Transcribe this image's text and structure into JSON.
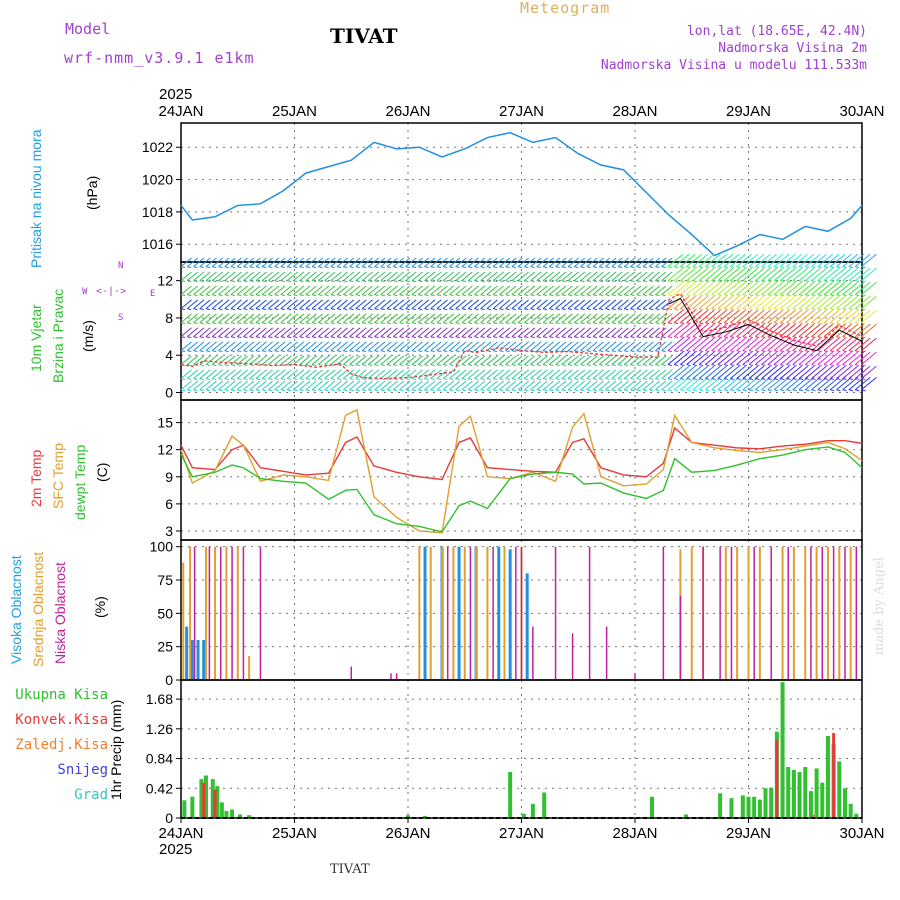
{
  "header": {
    "model_label": "Model",
    "model_name": "wrf-nmm_v3.9.1 e1km",
    "station": "TIVAT",
    "meteogram": "Meteogram",
    "lonlat": "lon,lat (18.65E, 42.4N)",
    "elev": "Nadmorska Visina 2m",
    "elev_model": "Nadmorska Visina u modelu 111.533m"
  },
  "footer": {
    "station": "TIVAT",
    "watermark": "made by Angel"
  },
  "time_axis": {
    "year": "2025",
    "labels": [
      "24JAN",
      "25JAN",
      "26JAN",
      "27JAN",
      "28JAN",
      "29JAN",
      "30JAN"
    ]
  },
  "panel_labels": {
    "pressure": [
      "Pritisak na nivou mora",
      "(hPa)"
    ],
    "wind": [
      "10m Vjetar",
      "Brzina i Pravac",
      "(m/s)"
    ],
    "temp": [
      "2m Temp",
      "SFC Temp",
      "dewpt Temp",
      "(C)"
    ],
    "cloud": [
      "Visoka Oblacnost",
      "Srednja Oblacnost",
      "Niska Oblacnost",
      "(%)"
    ],
    "precip_axis": "1hr Precip (mm)",
    "precip_legend": [
      "Ukupna Kisa",
      "Konvek.Kisa",
      "Zaledj.Kisa",
      "Snijeg",
      "Grad"
    ]
  },
  "compass": {
    "n": "N",
    "s": "S",
    "w": "W",
    "e": "E"
  },
  "colors": {
    "pressure": "#2090e0",
    "t2m": "#e83a3a",
    "tsfc": "#e0a030",
    "dewpt": "#30c030",
    "cloud_high": "#2090e0",
    "cloud_mid": "#e0a030",
    "cloud_low": "#c020a0",
    "rain": "#30c030",
    "conv": "#e83a3a",
    "frz": "#f08030",
    "snow": "#4040e0",
    "hail": "#30c8c0"
  },
  "chart_data": [
    {
      "type": "line",
      "name": "pressure",
      "title": "",
      "ylabel": "(hPa)",
      "ylim": [
        1014.9,
        1023.5
      ],
      "ticks": [
        1016,
        1018,
        1020,
        1022
      ],
      "x_days": [
        0,
        0.1,
        0.3,
        0.5,
        0.7,
        0.9,
        1.1,
        1.3,
        1.5,
        1.7,
        1.9,
        2.1,
        2.3,
        2.5,
        2.7,
        2.9,
        3.1,
        3.3,
        3.5,
        3.7,
        3.9,
        4.1,
        4.3,
        4.5,
        4.7,
        4.9,
        5.1,
        5.3,
        5.5,
        5.7,
        5.9
      ],
      "series": [
        {
          "values": [
            1018.4,
            1017.5,
            1017.7,
            1018.4,
            1018.5,
            1019.3,
            1020.4,
            1020.8,
            1021.2,
            1022.3,
            1021.9,
            1022.0,
            1021.4,
            1021.9,
            1022.6,
            1022.9,
            1022.3,
            1022.6,
            1021.6,
            1020.9,
            1020.6,
            1019.2,
            1017.8,
            1016.6,
            1015.3,
            1015.9,
            1016.6,
            1016.3,
            1017.1,
            1016.8,
            1017.6
          ]
        }
      ],
      "x_end": [
        6.0,
        1018.4
      ]
    },
    {
      "type": "line",
      "name": "wind_speed",
      "ylabel": "(m/s)",
      "ylim": [
        -0.8,
        14
      ],
      "ticks": [
        0,
        4,
        8,
        12
      ],
      "x_days": [
        0,
        0.1,
        0.2,
        0.4,
        0.6,
        0.8,
        1.0,
        1.2,
        1.4,
        1.5,
        1.6,
        1.8,
        2.0,
        2.2,
        2.4,
        2.5,
        2.6,
        2.8,
        3.0,
        3.2,
        3.4,
        3.6,
        3.8,
        4.0,
        4.2,
        4.3,
        4.4,
        4.6,
        4.8,
        5.0,
        5.2,
        5.4,
        5.6,
        5.8,
        6.0
      ],
      "series": [
        {
          "values": [
            3.0,
            2.8,
            3.4,
            3.2,
            3.1,
            2.9,
            3.0,
            2.7,
            3.1,
            2.0,
            1.6,
            1.5,
            1.6,
            1.9,
            2.2,
            4.5,
            4.3,
            4.8,
            4.5,
            4.3,
            4.4,
            4.2,
            4.0,
            3.8,
            3.8,
            10.0,
            10.6,
            6.5,
            7.0,
            7.8,
            6.6,
            5.6,
            5.0,
            7.2,
            6.0
          ]
        }
      ],
      "barb_rows": [
        0.3,
        1.5,
        3.0,
        4.5,
        6.0,
        7.5,
        9.0,
        10.5,
        12.0,
        13.5
      ]
    },
    {
      "type": "line",
      "name": "temperature",
      "ylabel": "(C)",
      "ylim": [
        2.0,
        17.5
      ],
      "ticks": [
        3,
        6,
        9,
        12,
        15
      ],
      "x_days": [
        0,
        0.1,
        0.3,
        0.45,
        0.55,
        0.7,
        0.9,
        1.1,
        1.3,
        1.45,
        1.55,
        1.7,
        1.9,
        2.1,
        2.3,
        2.45,
        2.55,
        2.7,
        2.9,
        3.1,
        3.3,
        3.45,
        3.55,
        3.7,
        3.9,
        4.1,
        4.25,
        4.35,
        4.5,
        4.7,
        4.9,
        5.1,
        5.3,
        5.5,
        5.7,
        5.85,
        6.0
      ],
      "series": [
        {
          "name": "2m Temp",
          "values": [
            12.5,
            10.0,
            9.8,
            12.0,
            12.5,
            10.0,
            9.6,
            9.2,
            9.4,
            12.8,
            13.4,
            10.2,
            9.5,
            9.0,
            8.7,
            12.8,
            13.3,
            10.0,
            9.8,
            9.6,
            9.5,
            12.8,
            13.2,
            10.0,
            9.2,
            9.0,
            10.5,
            14.4,
            12.8,
            12.5,
            12.2,
            12.1,
            12.4,
            12.6,
            13.0,
            13.0,
            12.7
          ]
        },
        {
          "name": "SFC Temp",
          "values": [
            12.0,
            8.3,
            9.7,
            13.5,
            12.5,
            8.5,
            9.2,
            9.0,
            8.6,
            15.8,
            16.4,
            6.8,
            4.5,
            3.0,
            2.8,
            14.6,
            15.7,
            9.0,
            8.8,
            9.5,
            8.5,
            14.5,
            16.0,
            9.0,
            8.0,
            8.2,
            9.8,
            15.8,
            12.8,
            12.2,
            11.9,
            11.7,
            12.0,
            12.4,
            12.8,
            12.1,
            10.8
          ]
        },
        {
          "name": "dewpt Temp",
          "values": [
            11.5,
            9.0,
            9.5,
            10.3,
            10.0,
            8.8,
            8.5,
            8.3,
            6.5,
            7.5,
            7.6,
            4.8,
            3.8,
            3.5,
            2.9,
            5.8,
            6.3,
            5.5,
            8.8,
            9.3,
            9.5,
            9.3,
            8.2,
            8.3,
            7.2,
            6.6,
            7.5,
            11.0,
            9.5,
            9.7,
            10.3,
            11.0,
            11.4,
            12.0,
            12.3,
            11.7,
            10.0
          ]
        }
      ]
    },
    {
      "type": "bar",
      "name": "cloud_cover",
      "ylabel": "(%)",
      "ylim": [
        0,
        105
      ],
      "ticks": [
        0,
        25,
        50,
        75,
        100
      ],
      "series": [
        {
          "name": "Visoka Oblacnost",
          "x_days": [
            0.05,
            0.1,
            0.15,
            0.2,
            2.15,
            2.3,
            2.45,
            2.6,
            2.8,
            2.9,
            3.05
          ],
          "values": [
            40,
            30,
            30,
            30,
            100,
            100,
            100,
            100,
            100,
            98,
            80
          ]
        },
        {
          "name": "Srednja Oblacnost",
          "x_days": [
            0.02,
            0.08,
            0.22,
            0.3,
            0.4,
            0.5,
            0.6,
            2.1,
            2.2,
            2.3,
            2.4,
            2.5,
            2.6,
            2.7,
            2.85,
            3.0,
            4.4,
            4.5,
            4.6,
            4.8,
            4.9,
            5.0,
            5.1,
            5.3,
            5.4,
            5.5,
            5.6,
            5.7,
            5.8,
            5.9
          ],
          "values": [
            88,
            100,
            100,
            100,
            100,
            100,
            18,
            100,
            100,
            100,
            100,
            100,
            100,
            100,
            100,
            100,
            98,
            100,
            100,
            100,
            100,
            100,
            100,
            100,
            100,
            100,
            100,
            100,
            100,
            100
          ]
        },
        {
          "name": "Niska Oblacnost",
          "x_days": [
            0.12,
            0.25,
            0.35,
            0.45,
            0.55,
            0.7,
            1.5,
            1.85,
            1.9,
            2.35,
            2.55,
            2.75,
            2.95,
            3.0,
            3.1,
            3.3,
            3.45,
            3.6,
            3.75,
            4.0,
            4.25,
            4.4,
            4.6,
            4.75,
            4.85,
            5.05,
            5.2,
            5.35,
            5.55,
            5.65,
            5.75,
            5.85,
            5.95
          ],
          "values": [
            100,
            100,
            100,
            100,
            100,
            100,
            10,
            5,
            5,
            100,
            100,
            100,
            100,
            100,
            40,
            100,
            35,
            100,
            40,
            5,
            100,
            63,
            100,
            100,
            100,
            100,
            100,
            100,
            100,
            100,
            100,
            100,
            100
          ]
        }
      ]
    },
    {
      "type": "bar",
      "name": "precipitation",
      "ylabel": "1hr Precip (mm)",
      "ylim": [
        0,
        1.95
      ],
      "ticks": [
        0,
        0.42,
        0.84,
        1.26,
        1.68
      ],
      "series": [
        {
          "name": "Ukupna Kisa",
          "x_days": [
            0.03,
            0.1,
            0.18,
            0.22,
            0.28,
            0.32,
            0.36,
            0.4,
            0.45,
            0.52,
            0.6,
            2.0,
            2.15,
            2.9,
            3.02,
            3.1,
            3.2,
            4.15,
            4.45,
            4.75,
            4.85,
            4.95,
            5.0,
            5.05,
            5.1,
            5.15,
            5.2,
            5.25,
            5.3,
            5.35,
            5.4,
            5.45,
            5.5,
            5.55,
            5.6,
            5.65,
            5.7,
            5.75,
            5.8,
            5.85,
            5.9,
            5.95
          ],
          "values": [
            0.25,
            0.3,
            0.55,
            0.6,
            0.55,
            0.45,
            0.22,
            0.1,
            0.12,
            0.05,
            0.04,
            0.04,
            0.03,
            0.65,
            0.06,
            0.2,
            0.36,
            0.3,
            0.05,
            0.35,
            0.28,
            0.32,
            0.3,
            0.3,
            0.26,
            0.42,
            0.43,
            1.22,
            1.92,
            0.72,
            0.68,
            0.65,
            0.72,
            0.38,
            0.7,
            0.5,
            1.16,
            1.05,
            0.8,
            0.42,
            0.2,
            0.06
          ]
        },
        {
          "name": "Konvek.Kisa",
          "x_days": [
            0.2,
            0.3,
            5.25,
            5.75
          ],
          "values": [
            0.5,
            0.4,
            1.1,
            1.2
          ]
        },
        {
          "name": "Zaledj.Kisa",
          "x_days": [
            5.58
          ],
          "values": [
            0.05
          ]
        },
        {
          "name": "Snijeg",
          "x_days": [],
          "values": []
        },
        {
          "name": "Grad",
          "x_days": [],
          "values": []
        }
      ]
    }
  ]
}
